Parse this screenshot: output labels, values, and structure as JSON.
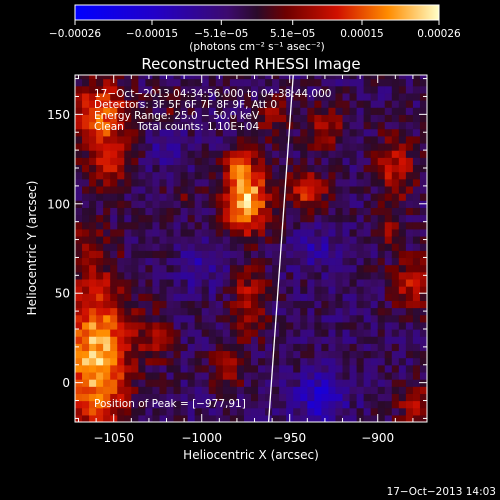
{
  "chart_data": {
    "type": "heatmap",
    "title": "Reconstructed RHESSI Image",
    "xlabel": "Heliocentric X (arcsec)",
    "ylabel": "Heliocentric Y (arcsec)",
    "xlim": [
      -1072,
      -872
    ],
    "ylim": [
      -22,
      172
    ],
    "x_ticks": [
      -1050,
      -1000,
      -950,
      -900
    ],
    "y_ticks": [
      0,
      50,
      100,
      150
    ],
    "x_tick_labels": [
      "−1050",
      "−1000",
      "−950",
      "−900"
    ],
    "y_tick_labels": [
      "0",
      "50",
      "100",
      "150"
    ],
    "colorbar": {
      "range": [
        -0.00026,
        0.00026
      ],
      "tick_values": [
        -0.00026,
        -0.00015,
        -5.1e-05,
        5.1e-05,
        0.00015,
        0.00026
      ],
      "tick_labels": [
        "−0.00026",
        "−0.00015",
        "−5.1e−05",
        "5.1e−05",
        "0.00015",
        "0.00026"
      ],
      "unit_label": "(photons cm⁻² s⁻¹ asec⁻²)"
    },
    "annotations": [
      "17−Oct−2013 04:34:56.000 to 04:38:44.000",
      "Detectors: 3F 5F 6F 7F 8F 9F, Att 0",
      "Energy Range: 25.0 − 50.0 keV",
      "Clean    Total counts: 1.10E+04"
    ],
    "peak_label": "Position of Peak = [−977,91]",
    "peak_position": [
      -977,
      91
    ],
    "limb_line": [
      [
        -962,
        -22
      ],
      [
        -948,
        172
      ]
    ],
    "blobs": [
      {
        "x": -975,
        "y": 103,
        "sx": 9,
        "sy": 14,
        "amp": 0.00026
      },
      {
        "x": -979,
        "y": 124,
        "sx": 5,
        "sy": 5,
        "amp": 0.00014
      },
      {
        "x": -1057,
        "y": 150,
        "sx": 11,
        "sy": 13,
        "amp": 0.0002
      },
      {
        "x": -1052,
        "y": 122,
        "sx": 9,
        "sy": 9,
        "amp": 0.00012
      },
      {
        "x": -1060,
        "y": 15,
        "sx": 13,
        "sy": 32,
        "amp": 0.00025
      },
      {
        "x": -1027,
        "y": 25,
        "sx": 8,
        "sy": 10,
        "amp": 9e-05
      },
      {
        "x": -973,
        "y": 45,
        "sx": 7,
        "sy": 13,
        "amp": 0.00013
      },
      {
        "x": -985,
        "y": 10,
        "sx": 7,
        "sy": 9,
        "amp": 0.0001
      },
      {
        "x": -940,
        "y": 108,
        "sx": 8,
        "sy": 8,
        "amp": 0.00015
      },
      {
        "x": -930,
        "y": 143,
        "sx": 8,
        "sy": 8,
        "amp": 0.00012
      },
      {
        "x": -960,
        "y": 150,
        "sx": 8,
        "sy": 8,
        "amp": 9e-05
      },
      {
        "x": -890,
        "y": 120,
        "sx": 8,
        "sy": 14,
        "amp": 0.00013
      },
      {
        "x": -880,
        "y": 55,
        "sx": 9,
        "sy": 11,
        "amp": 0.00012
      },
      {
        "x": -895,
        "y": 85,
        "sx": 6,
        "sy": 6,
        "amp": 8e-05
      },
      {
        "x": -878,
        "y": -12,
        "sx": 9,
        "sy": 9,
        "amp": 0.0001
      },
      {
        "x": -1015,
        "y": 155,
        "sx": 8,
        "sy": 7,
        "amp": 6e-05
      },
      {
        "x": -1065,
        "y": 80,
        "sx": 6,
        "sy": 6,
        "amp": 7e-05
      },
      {
        "x": -1010,
        "y": 105,
        "sx": 6,
        "sy": 6,
        "amp": 6e-05
      },
      {
        "x": -932,
        "y": -8,
        "sx": 10,
        "sy": 9,
        "amp": -0.00012
      },
      {
        "x": -935,
        "y": 75,
        "sx": 9,
        "sy": 8,
        "amp": -7e-05
      },
      {
        "x": -1000,
        "y": 65,
        "sx": 9,
        "sy": 9,
        "amp": -6e-05
      },
      {
        "x": -1020,
        "y": 132,
        "sx": 8,
        "sy": 8,
        "amp": -6e-05
      }
    ],
    "baseline": -3e-05
  },
  "timestamp": "17−Oct−2013 14:03",
  "colors": {
    "background": "#000000",
    "text": "#ffffff",
    "limb": "#ffffff"
  }
}
